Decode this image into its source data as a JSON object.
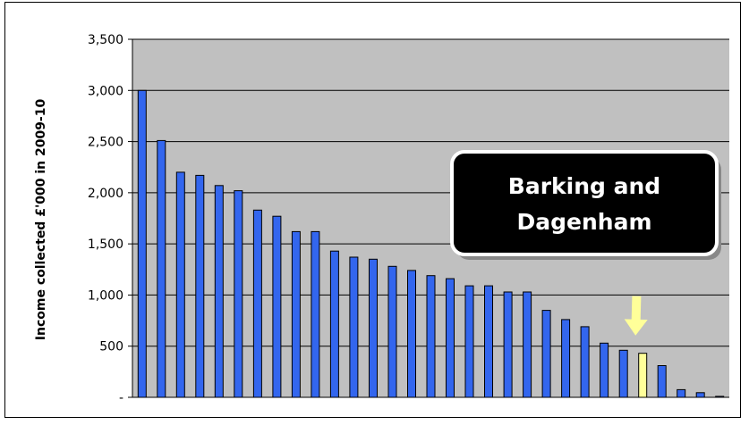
{
  "chart_data": {
    "type": "bar",
    "title": "",
    "xlabel": "",
    "ylabel": "Income collected  £'000 in 2009-10",
    "ylim": [
      0,
      3500
    ],
    "yticks": [
      {
        "value": 0,
        "label": "-"
      },
      {
        "value": 500,
        "label": "500"
      },
      {
        "value": 1000,
        "label": "1,000"
      },
      {
        "value": 1500,
        "label": "1,500"
      },
      {
        "value": 2000,
        "label": "2,000"
      },
      {
        "value": 2500,
        "label": "2,500"
      },
      {
        "value": 3000,
        "label": "3,000"
      },
      {
        "value": 3500,
        "label": "3,500"
      }
    ],
    "values": [
      3000,
      2510,
      2200,
      2170,
      2070,
      2020,
      1830,
      1770,
      1620,
      1620,
      1430,
      1370,
      1350,
      1280,
      1240,
      1190,
      1160,
      1090,
      1090,
      1030,
      1030,
      850,
      760,
      690,
      530,
      460,
      430,
      310,
      75,
      45,
      10
    ],
    "highlight_index": 26,
    "grid": true,
    "colors": {
      "bar": "#3366ee",
      "highlight_bar": "#ffff99",
      "plot_bg": "#c0c0c0",
      "arrow": "#ffff99",
      "callout_bg": "#000000",
      "callout_text": "#ffffff"
    },
    "annotation": {
      "lines": [
        "Barking and",
        "Dagenham"
      ]
    }
  }
}
